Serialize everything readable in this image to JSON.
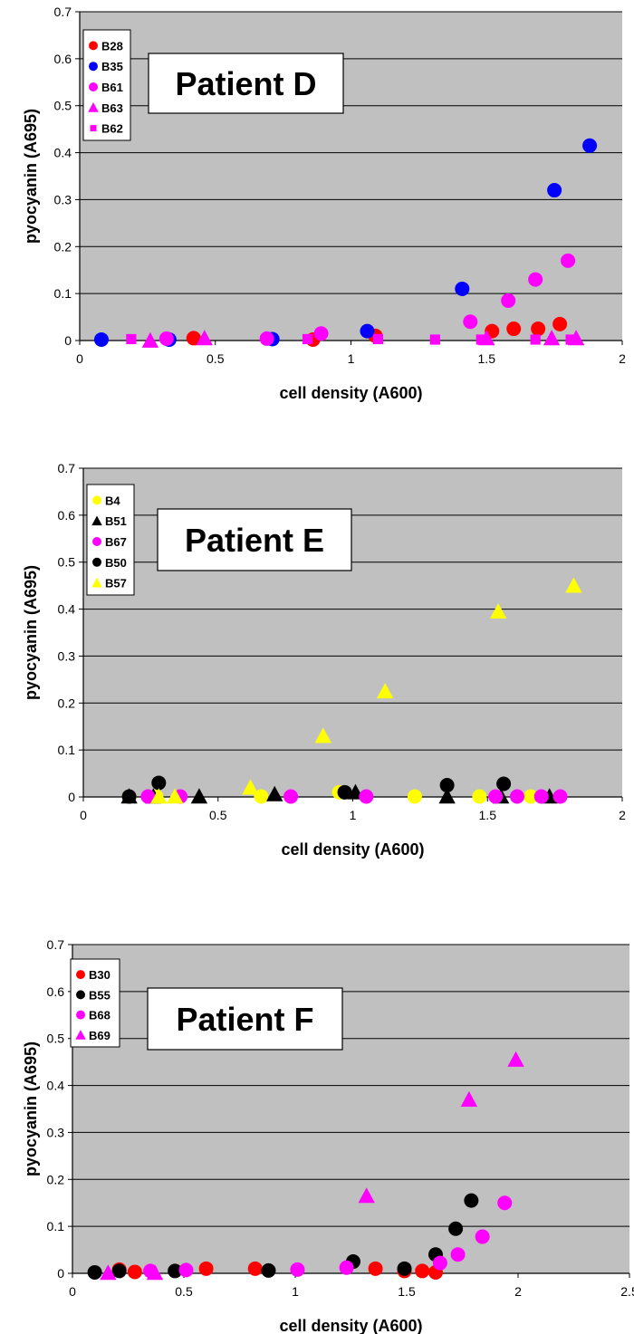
{
  "colors": {
    "plot_bg": "#c0c0c0",
    "red": "#ff0000",
    "blue": "#0000ff",
    "magenta": "#ff00ff",
    "yellow": "#ffff00",
    "black": "#000000"
  },
  "chart_data": [
    {
      "type": "scatter",
      "title": "Patient D",
      "xlabel": "cell density (A600)",
      "ylabel": "pyocyanin (A695)",
      "xlim": [
        0,
        2
      ],
      "ylim": [
        0,
        0.7
      ],
      "xticks": [
        "0",
        "0.5",
        "1",
        "1.5",
        "2"
      ],
      "yticks": [
        "0",
        "0.1",
        "0.2",
        "0.3",
        "0.4",
        "0.5",
        "0.6",
        "0.7"
      ],
      "grid": true,
      "legend_position": "top-left",
      "series": [
        {
          "name": "B28",
          "marker": "circle",
          "color": "#ff0000",
          "points": [
            [
              0.42,
              0.005
            ],
            [
              0.86,
              0.002
            ],
            [
              1.09,
              0.01
            ],
            [
              1.52,
              0.02
            ],
            [
              1.6,
              0.025
            ],
            [
              1.69,
              0.025
            ],
            [
              1.77,
              0.035
            ]
          ]
        },
        {
          "name": "B35",
          "marker": "circle",
          "color": "#0000ff",
          "points": [
            [
              0.08,
              0.002
            ],
            [
              0.33,
              0.002
            ],
            [
              0.71,
              0.003
            ],
            [
              1.06,
              0.02
            ],
            [
              1.41,
              0.11
            ],
            [
              1.75,
              0.32
            ],
            [
              1.88,
              0.415
            ]
          ]
        },
        {
          "name": "B61",
          "marker": "circle",
          "color": "#ff00ff",
          "points": [
            [
              0.32,
              0.004
            ],
            [
              0.69,
              0.004
            ],
            [
              0.89,
              0.015
            ],
            [
              1.44,
              0.04
            ],
            [
              1.58,
              0.085
            ],
            [
              1.68,
              0.13
            ],
            [
              1.8,
              0.17
            ]
          ]
        },
        {
          "name": "B63",
          "marker": "triangle",
          "color": "#ff00ff",
          "points": [
            [
              0.26,
              0.0
            ],
            [
              0.46,
              0.005
            ],
            [
              1.5,
              0.005
            ],
            [
              1.74,
              0.005
            ],
            [
              1.83,
              0.005
            ]
          ]
        },
        {
          "name": "B62",
          "marker": "square",
          "color": "#ff00ff",
          "points": [
            [
              0.19,
              0.003
            ],
            [
              0.84,
              0.003
            ],
            [
              1.1,
              0.003
            ],
            [
              1.31,
              0.002
            ],
            [
              1.48,
              0.002
            ],
            [
              1.68,
              0.002
            ],
            [
              1.81,
              0.002
            ]
          ]
        }
      ]
    },
    {
      "type": "scatter",
      "title": "Patient E",
      "xlabel": "cell density (A600)",
      "ylabel": "pyocyanin (A695)",
      "xlim": [
        0,
        2
      ],
      "ylim": [
        0,
        0.7
      ],
      "xticks": [
        "0",
        "0.5",
        "1",
        "1.5",
        "2"
      ],
      "yticks": [
        "0",
        "0.1",
        "0.2",
        "0.3",
        "0.4",
        "0.5",
        "0.6",
        "0.7"
      ],
      "grid": true,
      "legend_position": "top-left",
      "series": [
        {
          "name": "B4",
          "marker": "circle",
          "color": "#ffff00",
          "points": [
            [
              0.17,
              0.001
            ],
            [
              0.27,
              0.001
            ],
            [
              0.66,
              0.001
            ],
            [
              0.95,
              0.01
            ],
            [
              1.23,
              0.001
            ],
            [
              1.47,
              0.001
            ],
            [
              1.66,
              0.001
            ]
          ]
        },
        {
          "name": "B51",
          "marker": "triangle",
          "color": "#000000",
          "points": [
            [
              0.17,
              0.001
            ],
            [
              0.26,
              0.001
            ],
            [
              0.43,
              0.001
            ],
            [
              0.71,
              0.006
            ],
            [
              1.01,
              0.01
            ],
            [
              1.35,
              0.001
            ],
            [
              1.55,
              0.001
            ],
            [
              1.73,
              0.001
            ]
          ]
        },
        {
          "name": "B67",
          "marker": "circle",
          "color": "#ff00ff",
          "points": [
            [
              0.24,
              0.001
            ],
            [
              0.36,
              0.001
            ],
            [
              0.77,
              0.001
            ],
            [
              1.05,
              0.001
            ],
            [
              1.53,
              0.001
            ],
            [
              1.61,
              0.001
            ],
            [
              1.7,
              0.001
            ],
            [
              1.77,
              0.001
            ]
          ]
        },
        {
          "name": "B50",
          "marker": "circle",
          "color": "#000000",
          "points": [
            [
              0.17,
              0.001
            ],
            [
              0.28,
              0.03
            ],
            [
              0.97,
              0.01
            ],
            [
              1.35,
              0.025
            ],
            [
              1.56,
              0.028
            ]
          ]
        },
        {
          "name": "B57",
          "marker": "triangle",
          "color": "#ffff00",
          "points": [
            [
              0.28,
              0.001
            ],
            [
              0.34,
              0.001
            ],
            [
              0.62,
              0.02
            ],
            [
              0.89,
              0.13
            ],
            [
              1.12,
              0.225
            ],
            [
              1.54,
              0.395
            ],
            [
              1.82,
              0.45
            ]
          ]
        }
      ]
    },
    {
      "type": "scatter",
      "title": "Patient F",
      "xlabel": "cell density (A600)",
      "ylabel": "pyocyanin (A695)",
      "xlim": [
        0,
        2.5
      ],
      "ylim": [
        0,
        0.7
      ],
      "xticks": [
        "0",
        "0.5",
        "1",
        "1.5",
        "2",
        "2.5"
      ],
      "yticks": [
        "0",
        "0.1",
        "0.2",
        "0.3",
        "0.4",
        "0.5",
        "0.6",
        "0.7"
      ],
      "grid": true,
      "legend_position": "top-left",
      "series": [
        {
          "name": "B30",
          "marker": "circle",
          "color": "#ff0000",
          "points": [
            [
              0.21,
              0.008
            ],
            [
              0.28,
              0.003
            ],
            [
              0.6,
              0.01
            ],
            [
              0.82,
              0.01
            ],
            [
              1.36,
              0.01
            ],
            [
              1.49,
              0.005
            ],
            [
              1.57,
              0.005
            ],
            [
              1.63,
              0.002
            ]
          ]
        },
        {
          "name": "B55",
          "marker": "circle",
          "color": "#000000",
          "points": [
            [
              0.1,
              0.002
            ],
            [
              0.21,
              0.005
            ],
            [
              0.46,
              0.005
            ],
            [
              0.88,
              0.006
            ],
            [
              1.26,
              0.025
            ],
            [
              1.49,
              0.01
            ],
            [
              1.63,
              0.04
            ],
            [
              1.72,
              0.095
            ],
            [
              1.79,
              0.155
            ]
          ]
        },
        {
          "name": "B68",
          "marker": "circle",
          "color": "#ff00ff",
          "points": [
            [
              0.35,
              0.005
            ],
            [
              0.51,
              0.007
            ],
            [
              1.01,
              0.008
            ],
            [
              1.23,
              0.012
            ],
            [
              1.65,
              0.022
            ],
            [
              1.73,
              0.04
            ],
            [
              1.84,
              0.078
            ],
            [
              1.94,
              0.15
            ]
          ]
        },
        {
          "name": "B69",
          "marker": "triangle",
          "color": "#ff00ff",
          "points": [
            [
              0.16,
              0.001
            ],
            [
              0.37,
              0.001
            ],
            [
              1.32,
              0.165
            ],
            [
              1.78,
              0.37
            ],
            [
              1.99,
              0.455
            ]
          ]
        }
      ]
    }
  ]
}
